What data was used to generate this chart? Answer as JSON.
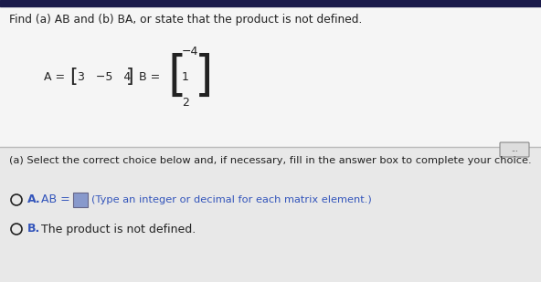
{
  "title": "Find (a) AB and (b) BA, or state that the product is not defined.",
  "matrix_A_elements": "3   −5   4",
  "matrix_B_top": "−4",
  "matrix_B_mid": "1",
  "matrix_B_bot": "2",
  "part_a_label": "(a) Select the correct choice below and, if necessary, fill in the answer box to complete your choice.",
  "choice_A_hint": "(Type an integer or decimal for each matrix element.)",
  "choice_B_text": "The product is not defined.",
  "bg_color": "#e8e8e8",
  "top_bar_color": "#1a1a4a",
  "white_panel": "#f0f0f0",
  "text_color": "#222222",
  "blue_color": "#3355bb",
  "answer_box_color": "#8899cc",
  "divider_color": "#bbbbbb"
}
